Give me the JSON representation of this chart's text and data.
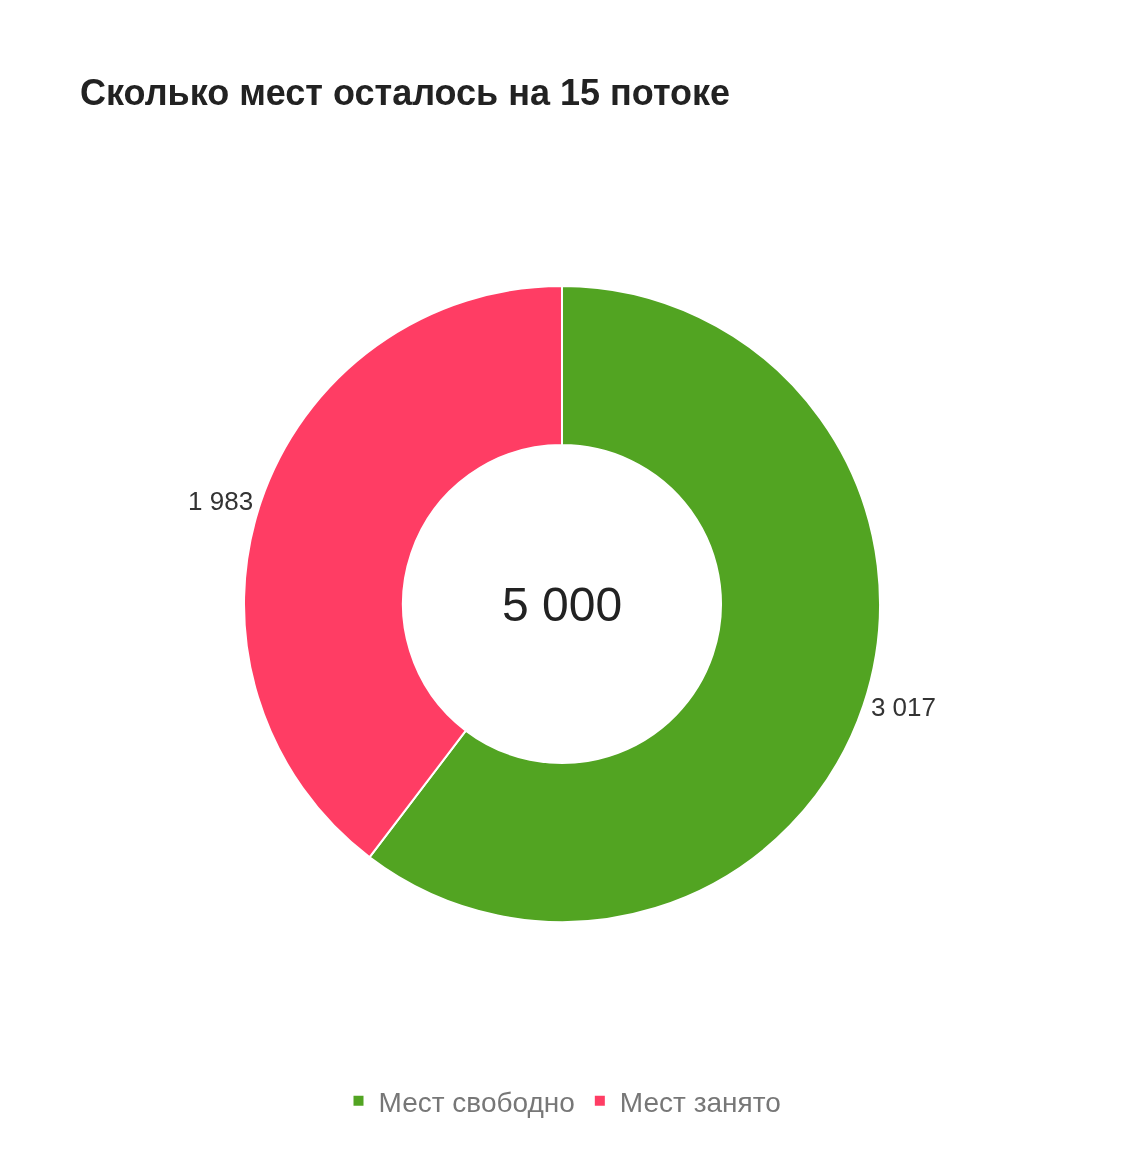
{
  "chart_data": {
    "type": "donut",
    "title": "Сколько мест осталось на 15 потоке",
    "categories": [
      "Мест свободно",
      "Мест занято"
    ],
    "values": [
      3017,
      1983
    ],
    "colors": [
      "#52a422",
      "#ff3d64"
    ],
    "value_labels": [
      "3 017",
      "1 983"
    ],
    "annotations": [
      "5 000"
    ],
    "legend": "bottom"
  }
}
